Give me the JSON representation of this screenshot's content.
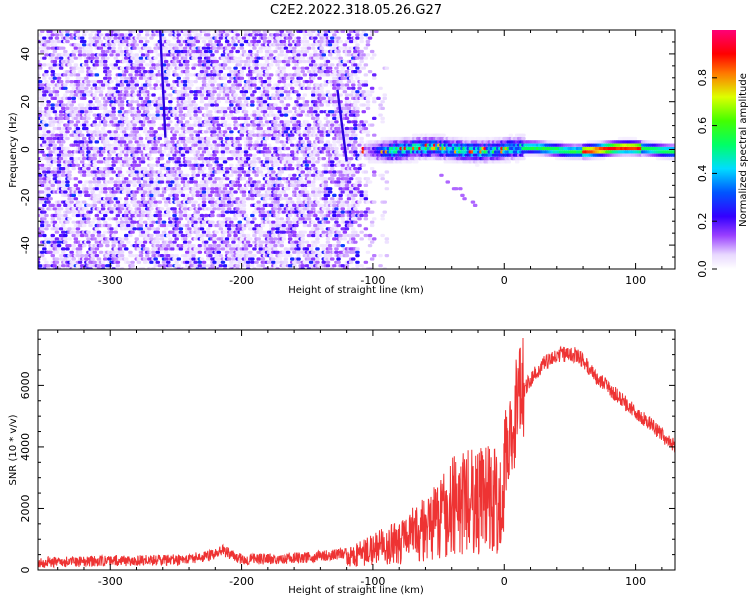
{
  "chart_data": [
    {
      "type": "heatmap",
      "title": "C2E2.2022.318.05.26.G27",
      "xlabel": "Height of straight line (km)",
      "ylabel": "Frequency (Hz)",
      "xlim": [
        -355,
        130
      ],
      "ylim": [
        -50,
        50
      ],
      "xticks": [
        -300,
        -200,
        -100,
        0,
        100
      ],
      "yticks": [
        -40,
        -20,
        0,
        20,
        40
      ],
      "colorbar": {
        "label": "Normalized spectral amplitude",
        "range": [
          0,
          1
        ],
        "ticks": [
          0.0,
          0.2,
          0.4,
          0.6,
          0.8
        ],
        "colormap": "rainbow (white-purple-blue-cyan-green-yellow-red-magenta)"
      },
      "features": [
        {
          "name": "noise-field",
          "x_range": [
            -355,
            -95
          ],
          "y_range": [
            -50,
            50
          ],
          "amplitude": 0.15
        },
        {
          "name": "signal-band",
          "x_range": [
            -110,
            130
          ],
          "y_center": 0,
          "amplitude_max": 0.95
        },
        {
          "name": "streak-1",
          "x_range": [
            -262,
            -258
          ],
          "y_range": [
            5,
            50
          ]
        },
        {
          "name": "streak-2",
          "x_range": [
            -127,
            -120
          ],
          "y_range": [
            -5,
            25
          ]
        }
      ]
    },
    {
      "type": "line",
      "xlabel": "Height of straight line (km)",
      "ylabel": "SNR (10 * v/v)",
      "xlim": [
        -355,
        130
      ],
      "ylim": [
        0,
        7800
      ],
      "xticks": [
        -300,
        -200,
        -100,
        0,
        100
      ],
      "yticks": [
        0,
        2000,
        4000,
        6000
      ],
      "series": [
        {
          "name": "SNR",
          "color": "#ee3333",
          "x": [
            -355,
            -300,
            -250,
            -225,
            -215,
            -200,
            -150,
            -120,
            -100,
            -80,
            -60,
            -40,
            -20,
            -10,
            -2,
            5,
            10,
            20,
            30,
            40,
            55,
            70,
            90,
            110,
            130
          ],
          "y": [
            250,
            300,
            330,
            450,
            650,
            350,
            400,
            550,
            900,
            1200,
            1800,
            2800,
            3000,
            3100,
            2600,
            4500,
            5500,
            6200,
            6700,
            7000,
            7000,
            6300,
            5500,
            4800,
            4000
          ]
        }
      ]
    }
  ]
}
